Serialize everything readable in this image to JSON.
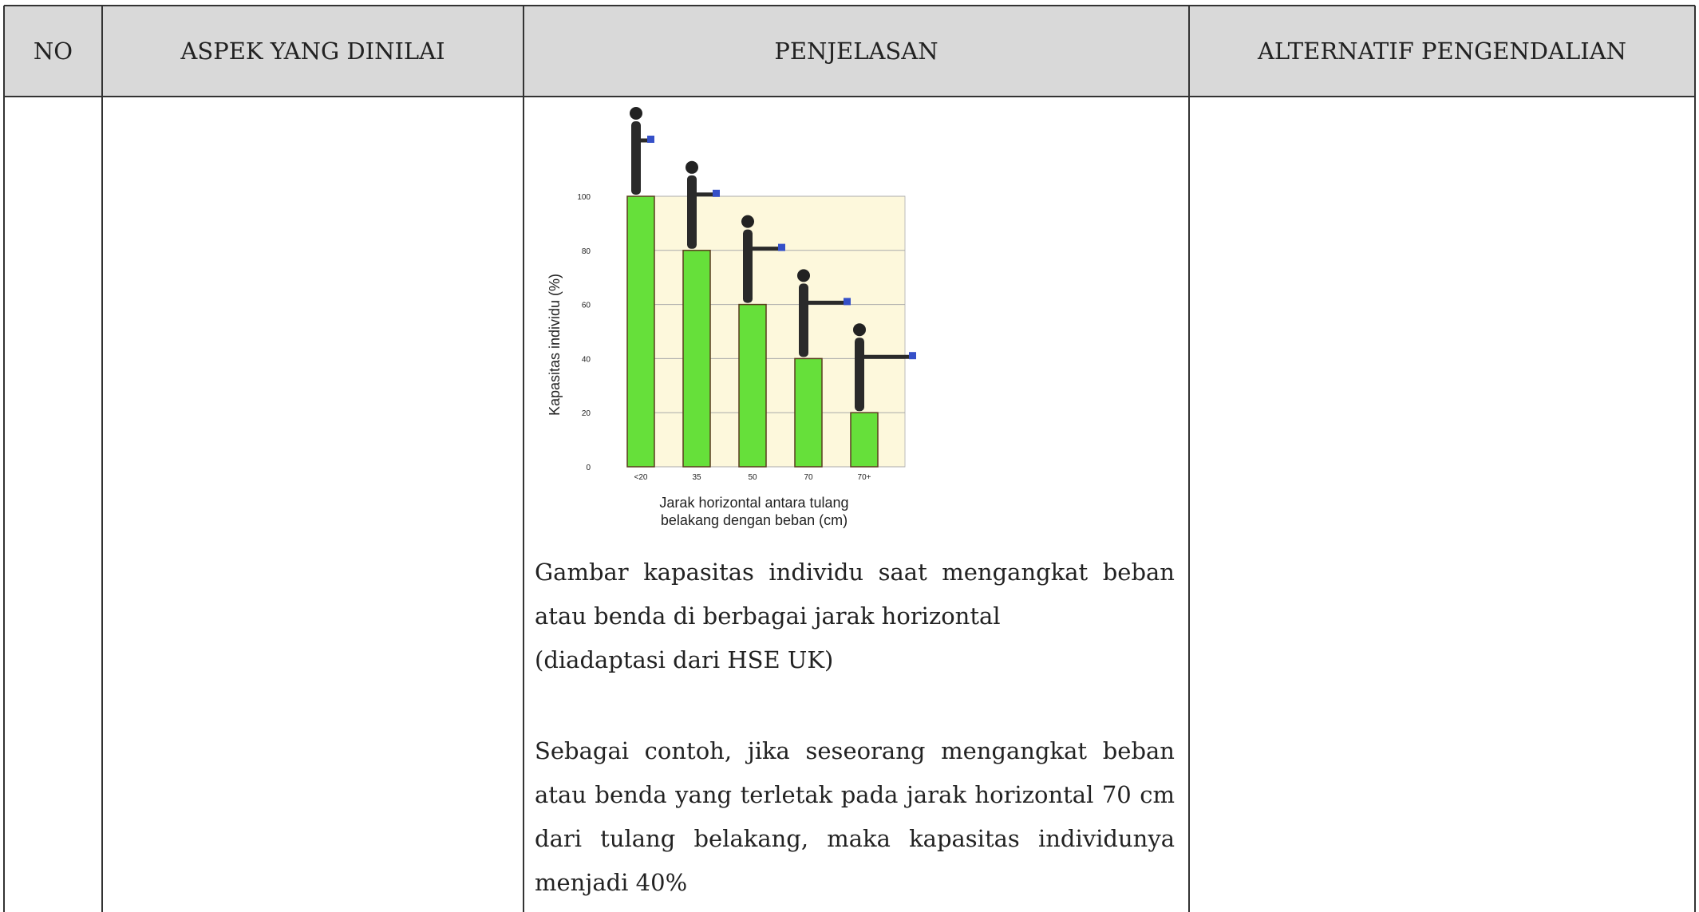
{
  "table": {
    "headers": [
      "NO",
      "ASPEK YANG DINILAI",
      "PENJELASAN",
      "ALTERNATIF PENGENDALIAN"
    ],
    "figure": {
      "type": "bar",
      "y_label": "Kapasitas individu (%)",
      "x_label": [
        "Jarak horizontal antara tulang",
        "belakang dengan beban (cm)"
      ],
      "categories": [
        "<20",
        "35",
        "50",
        "70",
        "70+"
      ],
      "values": [
        100,
        80,
        60,
        40,
        20
      ],
      "color": "#66e03a",
      "ylim": [
        0,
        100
      ],
      "yticks": [
        0,
        20,
        40,
        60,
        80,
        100
      ],
      "grid": true
    },
    "caption": [
      "Gambar kapasitas individu saat mengangkat beban atau benda di berbagai jarak horizontal",
      "(diadaptasi dari HSE UK)"
    ],
    "example": "Sebagai contoh, jika seseorang mengangkat beban atau benda yang terletak pada jarak horizontal 70 cm dari tulang belakang, maka kapasitas individunya menjadi 40%"
  }
}
